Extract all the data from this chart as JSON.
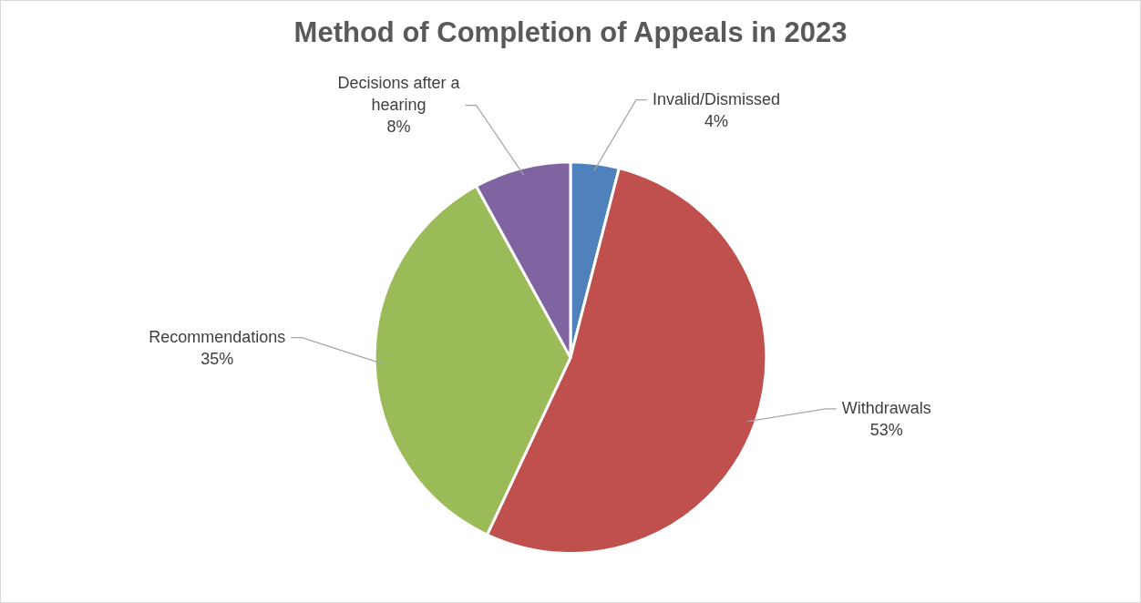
{
  "chart_data": {
    "type": "pie",
    "title": "Method of Completion of Appeals in 2023",
    "categories": [
      "Invalid/Dismissed",
      "Withdrawals",
      "Recommendations",
      "Decisions after a hearing"
    ],
    "values": [
      4,
      53,
      35,
      8
    ],
    "colors": [
      "#4f81bd",
      "#c0504d",
      "#9bbb59",
      "#8064a2"
    ],
    "value_labels": [
      "4%",
      "53%",
      "35%",
      "8%"
    ]
  }
}
